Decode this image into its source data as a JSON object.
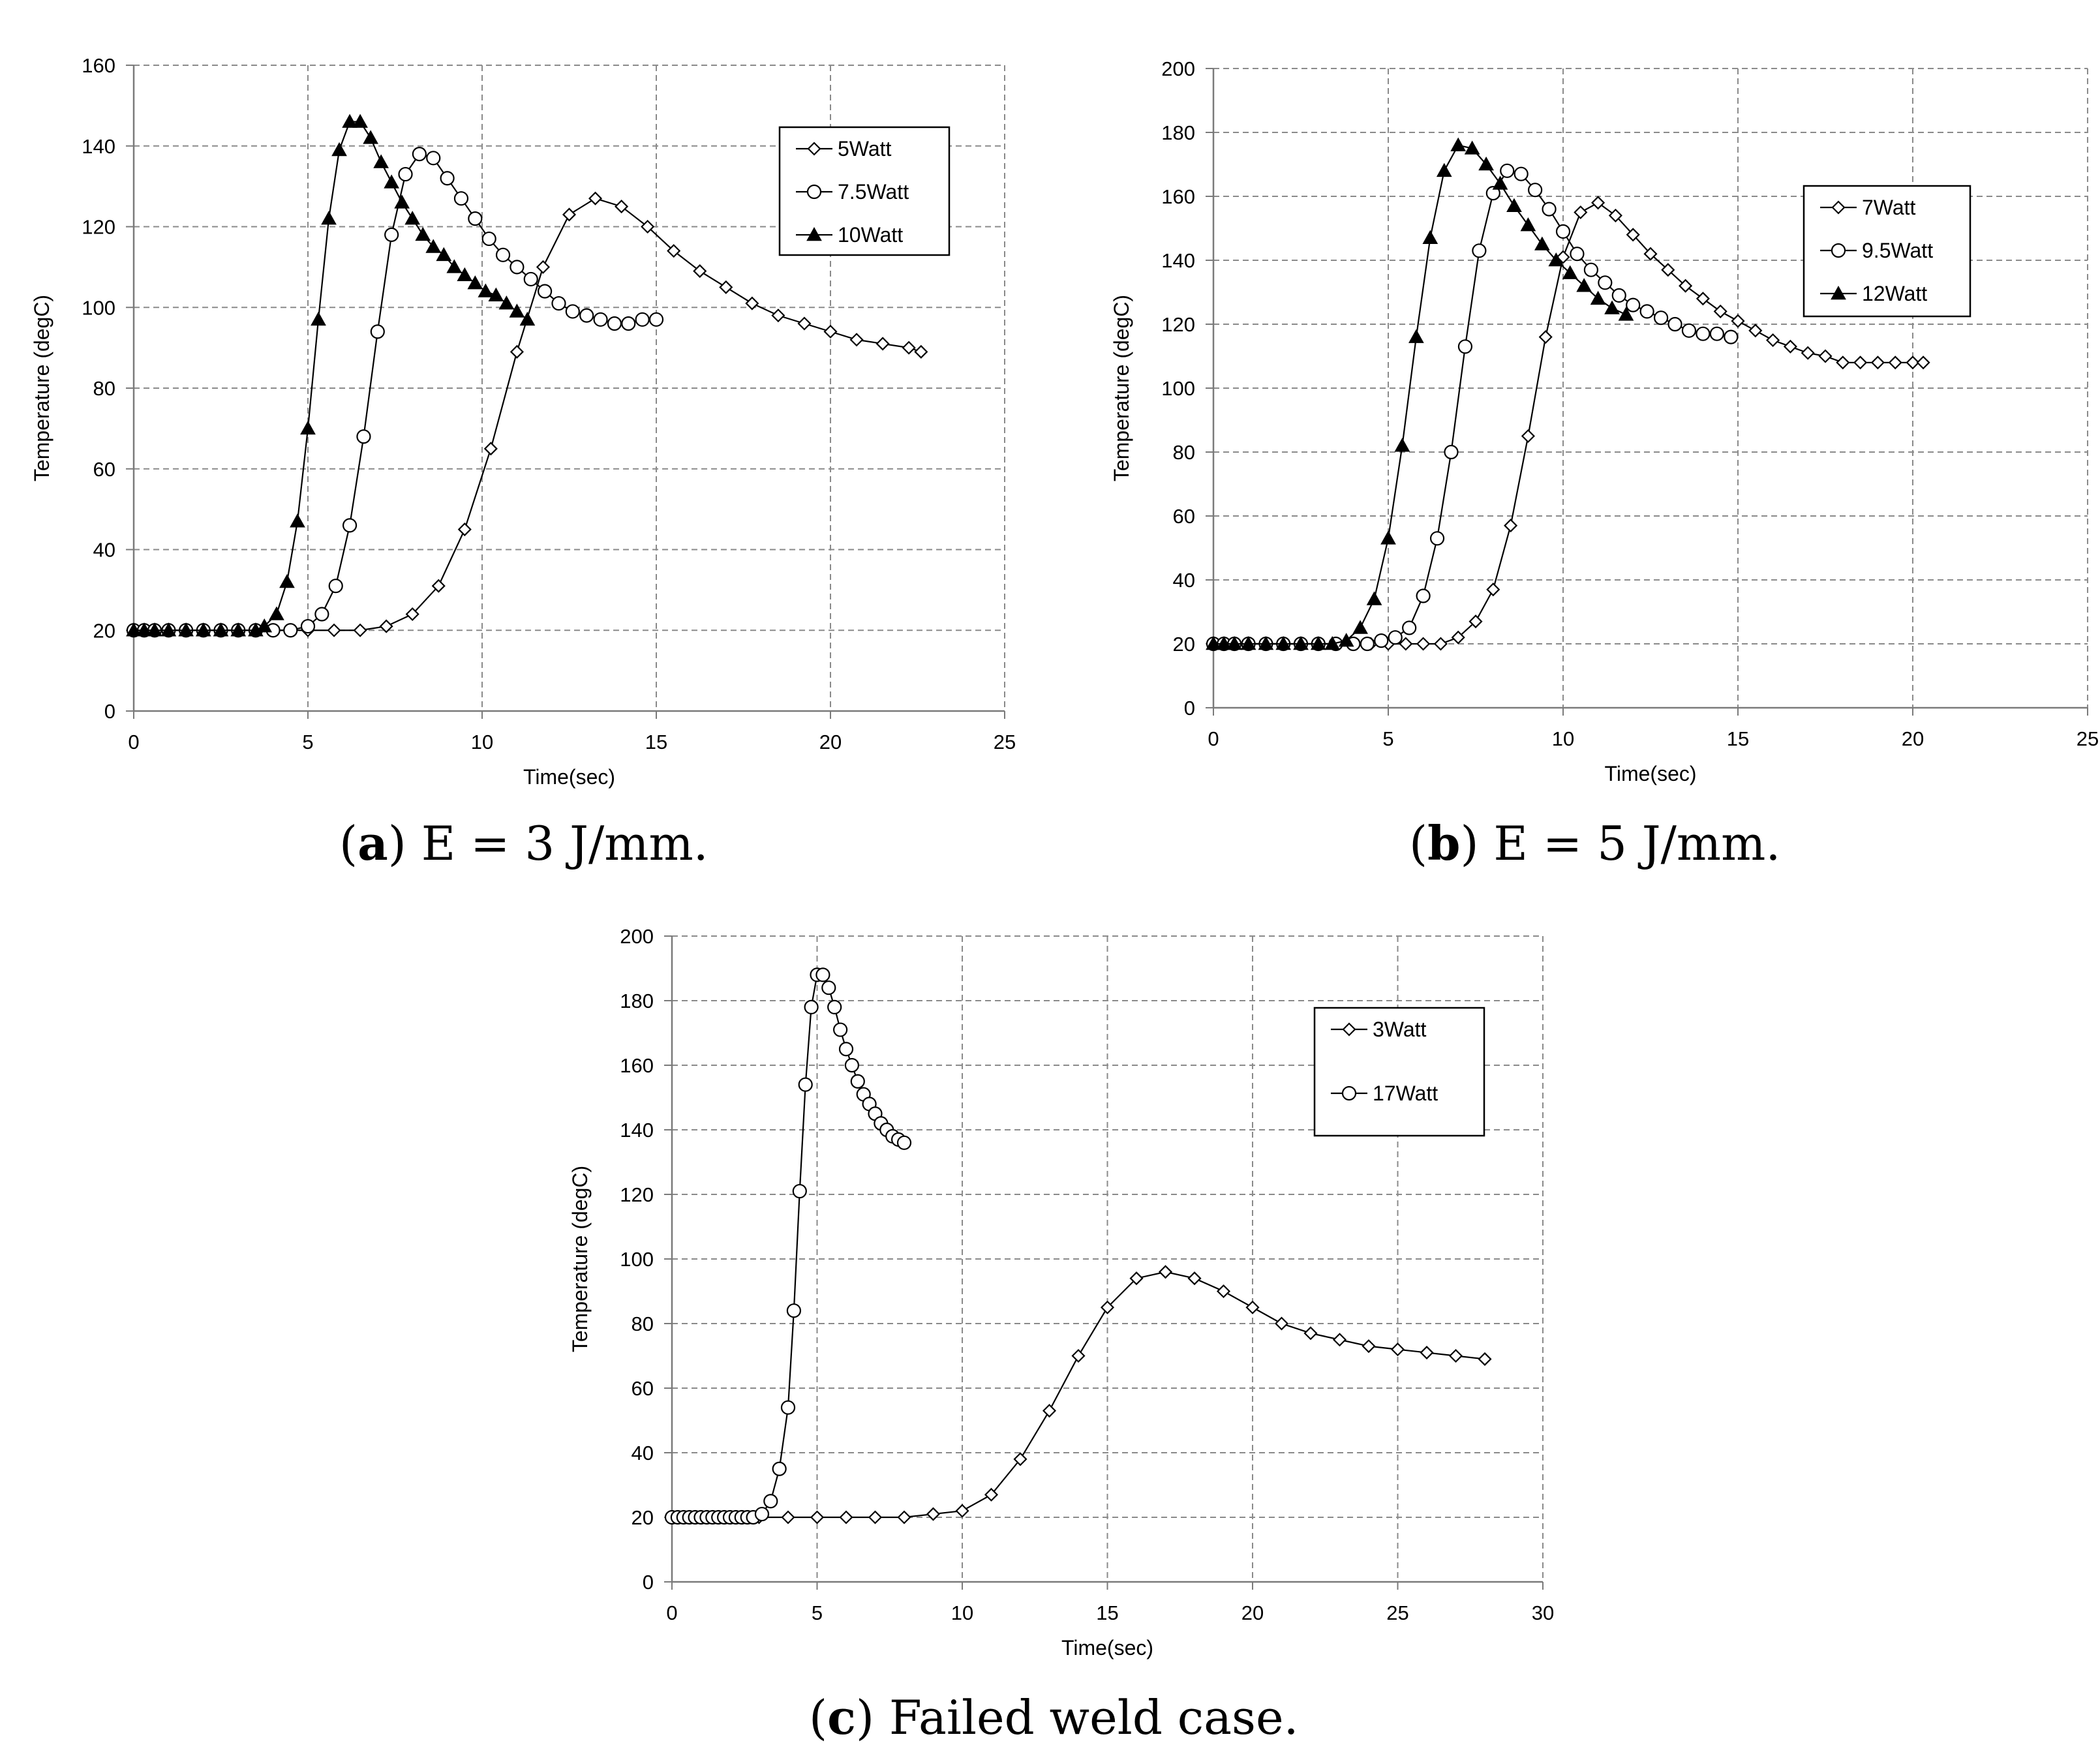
{
  "charts": [
    {
      "id": "a",
      "type": "line",
      "xlabel": "Time(sec)",
      "ylabel": "Temperature (degC)",
      "xlim": [
        0,
        25
      ],
      "ylim": [
        0,
        160
      ],
      "xticks": [
        0,
        5,
        10,
        15,
        20,
        25
      ],
      "yticks": [
        0,
        20,
        40,
        60,
        80,
        100,
        120,
        140,
        160
      ],
      "legend_position": "top-right",
      "series": [
        {
          "name": "5Watt",
          "marker": "diamond",
          "x": [
            0,
            0.3,
            0.6,
            1,
            1.5,
            2,
            2.5,
            3,
            3.5,
            4,
            4.5,
            5,
            5.75,
            6.5,
            7.25,
            8,
            8.75,
            9.5,
            10.25,
            11,
            11.75,
            12.5,
            13.25,
            14,
            14.75,
            15.5,
            16.25,
            17,
            17.75,
            18.5,
            19.25,
            20,
            20.75,
            21.5,
            22.25,
            22.6
          ],
          "y": [
            20,
            20,
            20,
            20,
            20,
            20,
            20,
            20,
            20,
            20,
            20,
            20,
            20,
            20,
            21,
            24,
            31,
            45,
            65,
            89,
            110,
            123,
            127,
            125,
            120,
            114,
            109,
            105,
            101,
            98,
            96,
            94,
            92,
            91,
            90,
            89
          ]
        },
        {
          "name": "7.5Watt",
          "marker": "circle",
          "x": [
            0,
            0.3,
            0.6,
            1,
            1.5,
            2,
            2.5,
            3,
            3.5,
            4,
            4.5,
            5,
            5.4,
            5.8,
            6.2,
            6.6,
            7,
            7.4,
            7.8,
            8.2,
            8.6,
            9,
            9.4,
            9.8,
            10.2,
            10.6,
            11,
            11.4,
            11.8,
            12.2,
            12.6,
            13,
            13.4,
            13.8,
            14.2,
            14.6,
            15
          ],
          "y": [
            20,
            20,
            20,
            20,
            20,
            20,
            20,
            20,
            20,
            20,
            20,
            21,
            24,
            31,
            46,
            68,
            94,
            118,
            133,
            138,
            137,
            132,
            127,
            122,
            117,
            113,
            110,
            107,
            104,
            101,
            99,
            98,
            97,
            96,
            96,
            97,
            97
          ]
        },
        {
          "name": "10Watt",
          "marker": "triangle",
          "x": [
            0,
            0.3,
            0.6,
            1,
            1.5,
            2,
            2.5,
            3,
            3.5,
            3.75,
            4.1,
            4.4,
            4.7,
            5,
            5.3,
            5.6,
            5.9,
            6.2,
            6.5,
            6.8,
            7.1,
            7.4,
            7.7,
            8,
            8.3,
            8.6,
            8.9,
            9.2,
            9.5,
            9.8,
            10.1,
            10.4,
            10.7,
            11,
            11.3
          ],
          "y": [
            20,
            20,
            20,
            20,
            20,
            20,
            20,
            20,
            20,
            21,
            24,
            32,
            47,
            70,
            97,
            122,
            139,
            146,
            146,
            142,
            136,
            131,
            126,
            122,
            118,
            115,
            113,
            110,
            108,
            106,
            104,
            103,
            101,
            99,
            97
          ]
        }
      ]
    },
    {
      "id": "b",
      "type": "line",
      "xlabel": "Time(sec)",
      "ylabel": "Temperature (degC)",
      "xlim": [
        0,
        25
      ],
      "ylim": [
        0,
        200
      ],
      "xticks": [
        0,
        5,
        10,
        15,
        20,
        25
      ],
      "yticks": [
        0,
        20,
        40,
        60,
        80,
        100,
        120,
        140,
        160,
        180,
        200
      ],
      "legend_position": "top-right",
      "series": [
        {
          "name": "7Watt",
          "marker": "diamond",
          "x": [
            0,
            0.3,
            0.6,
            1,
            1.5,
            2,
            2.5,
            3,
            3.5,
            4,
            4.5,
            5,
            5.5,
            6,
            6.5,
            7,
            7.5,
            8,
            8.5,
            9,
            9.5,
            10,
            10.5,
            11,
            11.5,
            12,
            12.5,
            13,
            13.5,
            14,
            14.5,
            15,
            15.5,
            16,
            16.5,
            17,
            17.5,
            18,
            18.5,
            19,
            19.5,
            20,
            20.3
          ],
          "y": [
            20,
            20,
            20,
            20,
            20,
            20,
            20,
            20,
            20,
            20,
            20,
            20,
            20,
            20,
            20,
            22,
            27,
            37,
            57,
            85,
            116,
            141,
            155,
            158,
            154,
            148,
            142,
            137,
            132,
            128,
            124,
            121,
            118,
            115,
            113,
            111,
            110,
            108,
            108,
            108,
            108,
            108,
            108
          ]
        },
        {
          "name": "9.5Watt",
          "marker": "circle",
          "x": [
            0,
            0.3,
            0.6,
            1,
            1.5,
            2,
            2.5,
            3,
            3.5,
            4,
            4.4,
            4.8,
            5.2,
            5.6,
            6,
            6.4,
            6.8,
            7.2,
            7.6,
            8,
            8.4,
            8.8,
            9.2,
            9.6,
            10,
            10.4,
            10.8,
            11.2,
            11.6,
            12,
            12.4,
            12.8,
            13.2,
            13.6,
            14,
            14.4,
            14.8
          ],
          "y": [
            20,
            20,
            20,
            20,
            20,
            20,
            20,
            20,
            20,
            20,
            20,
            21,
            22,
            25,
            35,
            53,
            80,
            113,
            143,
            161,
            168,
            167,
            162,
            156,
            149,
            142,
            137,
            133,
            129,
            126,
            124,
            122,
            120,
            118,
            117,
            117,
            116
          ]
        },
        {
          "name": "12Watt",
          "marker": "triangle",
          "x": [
            0,
            0.3,
            0.6,
            1,
            1.5,
            2,
            2.5,
            3,
            3.4,
            3.8,
            4.2,
            4.6,
            5,
            5.4,
            5.8,
            6.2,
            6.6,
            7,
            7.4,
            7.8,
            8.2,
            8.6,
            9,
            9.4,
            9.8,
            10.2,
            10.6,
            11,
            11.4,
            11.8
          ],
          "y": [
            20,
            20,
            20,
            20,
            20,
            20,
            20,
            20,
            20,
            21,
            25,
            34,
            53,
            82,
            116,
            147,
            168,
            176,
            175,
            170,
            164,
            157,
            151,
            145,
            140,
            136,
            132,
            128,
            125,
            123
          ]
        }
      ]
    },
    {
      "id": "c",
      "type": "line",
      "xlabel": "Time(sec)",
      "ylabel": "Temperature (degC)",
      "xlim": [
        0,
        30
      ],
      "ylim": [
        0,
        200
      ],
      "xticks": [
        0,
        5,
        10,
        15,
        20,
        25,
        30
      ],
      "yticks": [
        0,
        20,
        40,
        60,
        80,
        100,
        120,
        140,
        160,
        180,
        200
      ],
      "legend_position": "top-right",
      "series": [
        {
          "name": "3Watt",
          "marker": "diamond",
          "x": [
            0,
            0.2,
            0.5,
            1,
            1.5,
            2,
            2.5,
            3,
            4,
            5,
            6,
            7,
            8,
            9,
            10,
            11,
            12,
            13,
            14,
            15,
            16,
            17,
            18,
            19,
            20,
            21,
            22,
            23,
            24,
            25,
            26,
            27,
            28
          ],
          "y": [
            20,
            20,
            20,
            20,
            20,
            20,
            20,
            20,
            20,
            20,
            20,
            20,
            20,
            21,
            22,
            27,
            38,
            53,
            70,
            85,
            94,
            96,
            94,
            90,
            85,
            80,
            77,
            75,
            73,
            72,
            71,
            70,
            69
          ]
        },
        {
          "name": "17Watt",
          "marker": "circle",
          "x": [
            0,
            0.2,
            0.4,
            0.6,
            0.8,
            1,
            1.2,
            1.4,
            1.6,
            1.8,
            2,
            2.2,
            2.4,
            2.6,
            2.8,
            3.1,
            3.4,
            3.7,
            4,
            4.2,
            4.4,
            4.6,
            4.8,
            5,
            5.2,
            5.4,
            5.6,
            5.8,
            6,
            6.2,
            6.4,
            6.6,
            6.8,
            7,
            7.2,
            7.4,
            7.6,
            7.8,
            8
          ],
          "y": [
            20,
            20,
            20,
            20,
            20,
            20,
            20,
            20,
            20,
            20,
            20,
            20,
            20,
            20,
            20,
            21,
            25,
            35,
            54,
            84,
            121,
            154,
            178,
            188,
            188,
            184,
            178,
            171,
            165,
            160,
            155,
            151,
            148,
            145,
            142,
            140,
            138,
            137,
            136
          ]
        }
      ]
    }
  ],
  "captions": {
    "a": {
      "letter": "a",
      "open": "(",
      "close": ")",
      "text": " E = 3 J/mm."
    },
    "b": {
      "letter": "b",
      "open": "(",
      "close": ")",
      "text": " E = 5 J/mm."
    },
    "c": {
      "letter": "c",
      "open": "(",
      "close": ")",
      "text": " Failed weld case."
    }
  }
}
